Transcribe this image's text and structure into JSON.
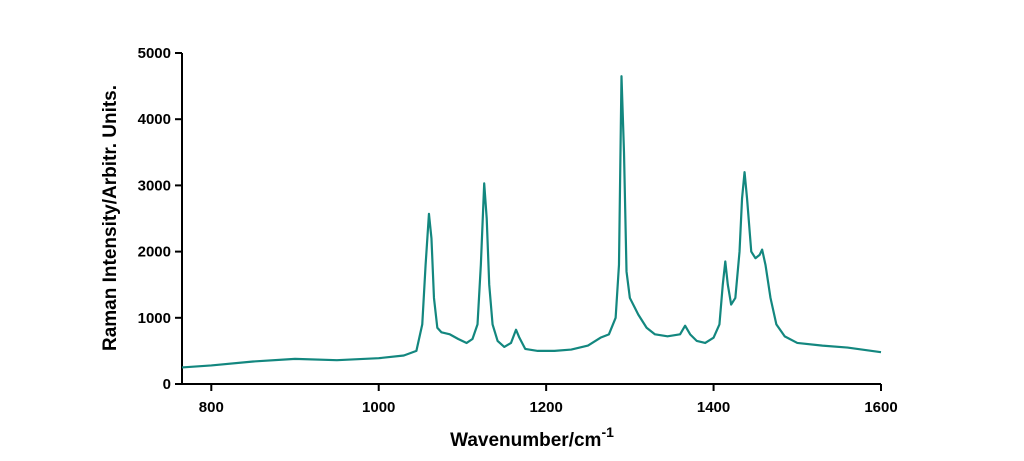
{
  "chart_data": {
    "type": "line",
    "x_label": {
      "text": "Wavenumber/cm",
      "superscript": "-1"
    },
    "y_label": "Raman Intensity/Arbitr. Units.",
    "xlim": [
      765,
      1600
    ],
    "xticks": [
      800,
      1000,
      1200,
      1400,
      1600
    ],
    "ylim": [
      0,
      5000
    ],
    "yticks": [
      0,
      1000,
      2000,
      3000,
      4000,
      5000
    ],
    "grid": false,
    "series": [
      {
        "color": "#13877f",
        "x": [
          765,
          800,
          850,
          900,
          950,
          1000,
          1030,
          1045,
          1052,
          1056,
          1060,
          1063,
          1066,
          1070,
          1075,
          1085,
          1095,
          1105,
          1112,
          1118,
          1122,
          1126,
          1129,
          1132,
          1136,
          1142,
          1150,
          1158,
          1164,
          1168,
          1175,
          1190,
          1210,
          1230,
          1250,
          1265,
          1275,
          1283,
          1287,
          1290,
          1293,
          1296,
          1300,
          1310,
          1320,
          1330,
          1345,
          1360,
          1366,
          1372,
          1380,
          1390,
          1400,
          1407,
          1411,
          1414,
          1417,
          1421,
          1426,
          1431,
          1434,
          1437,
          1440,
          1445,
          1450,
          1455,
          1458,
          1462,
          1468,
          1475,
          1485,
          1500,
          1530,
          1560,
          1600
        ],
        "values": [
          250,
          280,
          340,
          380,
          360,
          390,
          430,
          500,
          900,
          1800,
          2570,
          2200,
          1300,
          850,
          780,
          750,
          680,
          620,
          680,
          900,
          1800,
          3030,
          2500,
          1500,
          900,
          650,
          560,
          620,
          820,
          700,
          530,
          500,
          500,
          520,
          580,
          700,
          750,
          1000,
          1800,
          4650,
          3500,
          1700,
          1300,
          1050,
          850,
          750,
          720,
          750,
          880,
          750,
          650,
          620,
          700,
          900,
          1500,
          1850,
          1500,
          1200,
          1300,
          2000,
          2800,
          3200,
          2800,
          2000,
          1900,
          1950,
          2030,
          1800,
          1300,
          900,
          720,
          620,
          580,
          550,
          480
        ]
      }
    ]
  }
}
